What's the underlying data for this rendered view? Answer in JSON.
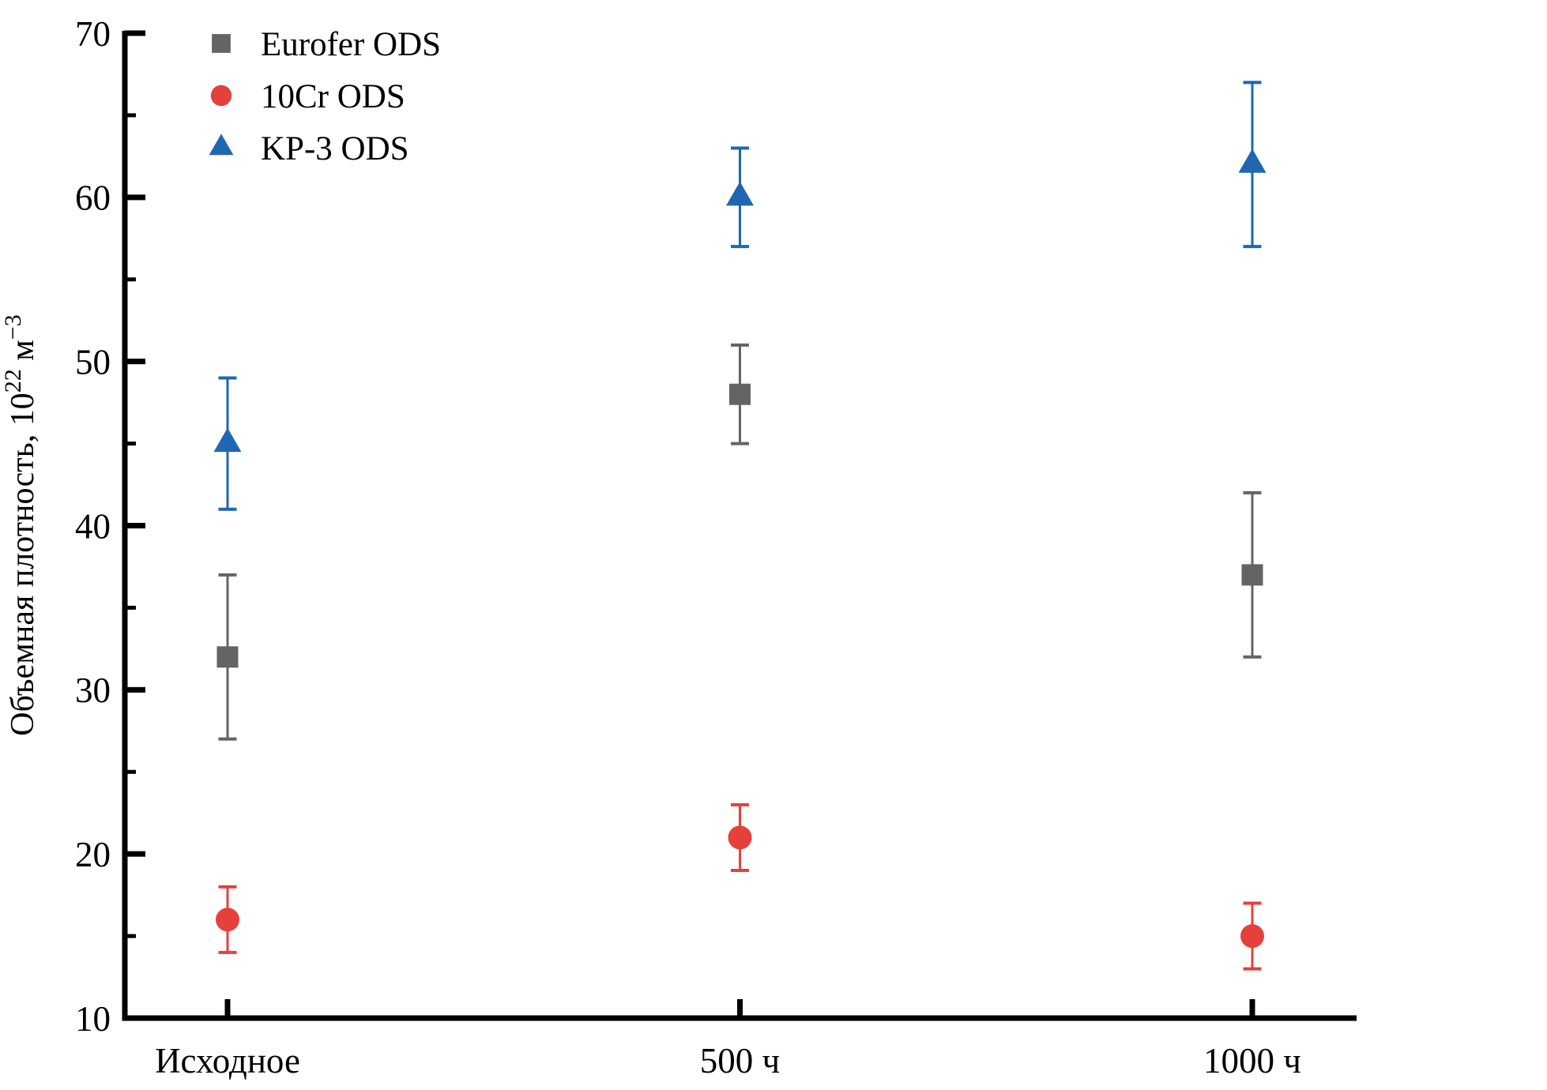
{
  "chart_data": {
    "type": "scatter",
    "title": "",
    "xlabel": "",
    "ylabel": "Объемная плотность, 10²² м⁻³",
    "ylabel_parts": [
      {
        "text": "Объемная плотность, 10",
        "super": false
      },
      {
        "text": "22",
        "super": true
      },
      {
        "text": " м",
        "super": false
      },
      {
        "text": "−3",
        "super": true
      }
    ],
    "categories": [
      "Исходное",
      "500 ч",
      "1000 ч"
    ],
    "series": [
      {
        "name": "Eurofer ODS",
        "marker": "square",
        "color": "#646464",
        "values": [
          32,
          48,
          37
        ],
        "errors": [
          5,
          3,
          5
        ]
      },
      {
        "name": "10Cr ODS",
        "marker": "circle",
        "color": "#e4413c",
        "values": [
          16,
          21,
          15
        ],
        "errors": [
          2,
          2,
          2
        ]
      },
      {
        "name": "KP-3 ODS",
        "marker": "triangle",
        "color": "#1f67b1",
        "values": [
          45,
          60,
          62
        ],
        "errors": [
          4,
          3,
          5
        ]
      }
    ],
    "ylim": [
      10,
      70
    ],
    "y_major_ticks": [
      70,
      60,
      50,
      40,
      30,
      20,
      10
    ],
    "y_minor_ticks": [
      65,
      55,
      45,
      35,
      25,
      15
    ],
    "axis_color": "#000000",
    "grid": false,
    "legend_position": "top-left"
  }
}
